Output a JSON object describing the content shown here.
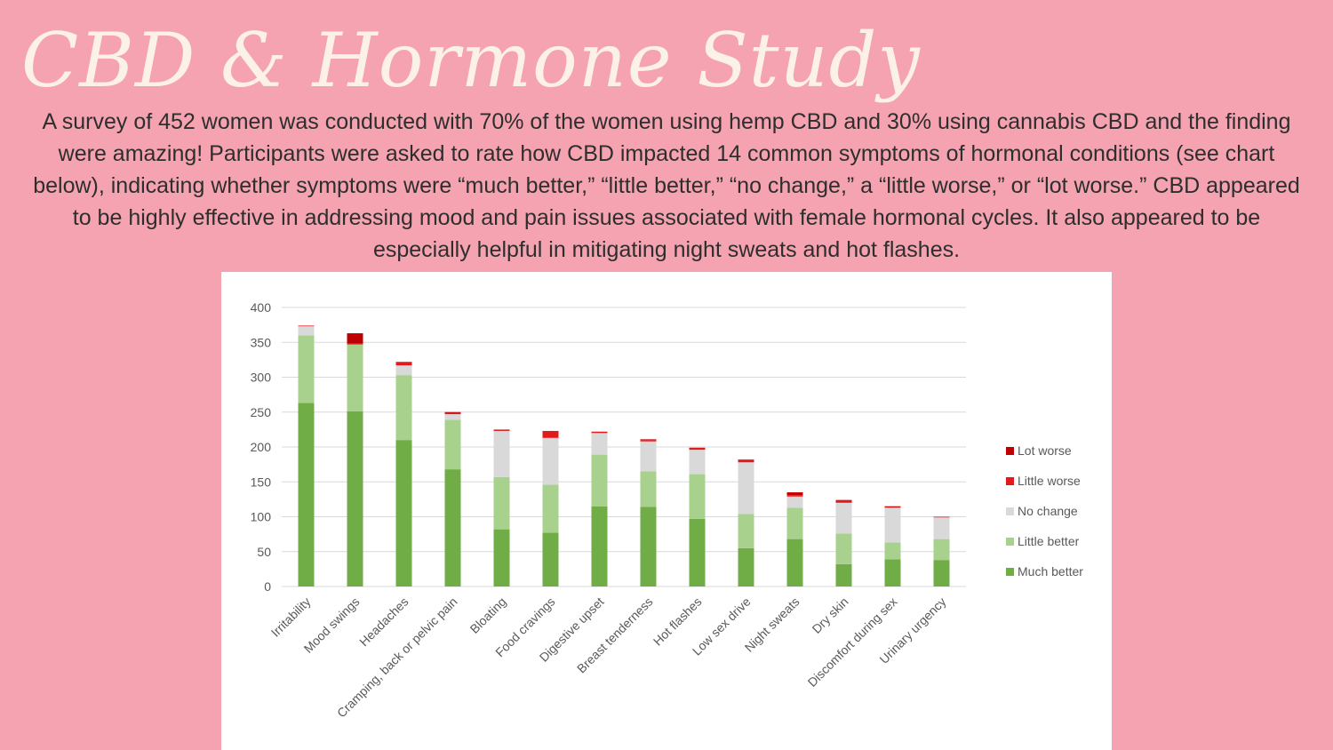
{
  "title": "CBD & Hormone Study",
  "description": "A survey of 452 women was conducted with 70% of the women using hemp CBD and 30% using cannabis CBD and the finding were amazing! Participants were asked to rate how CBD impacted 14 common symptoms of hormonal conditions (see chart below), indicating whether symptoms were “much better,” “little better,” “no change,” a “little worse,” or “lot worse.” CBD appeared to be highly effective in addressing mood and pain issues associated with female hormonal cycles. It also appeared to be especially helpful in mitigating night sweats and hot flashes.",
  "chart_data": {
    "type": "bar",
    "stacked": true,
    "categories": [
      "Irritability",
      "Mood swings",
      "Headaches",
      "Cramping, back or pelvic pain",
      "Bloating",
      "Food cravings",
      "Digestive upset",
      "Breast tenderness",
      "Hot flashes",
      "Low sex drive",
      "Night sweats",
      "Dry skin",
      "Discomfort during sex",
      "Urinary urgency"
    ],
    "series": [
      {
        "name": "Much better",
        "color": "#70ad47",
        "values": [
          263,
          251,
          210,
          168,
          82,
          77,
          115,
          114,
          97,
          55,
          68,
          32,
          39,
          38
        ]
      },
      {
        "name": "Little better",
        "color": "#a9d18e",
        "values": [
          97,
          96,
          93,
          71,
          75,
          69,
          74,
          51,
          64,
          49,
          45,
          44,
          24,
          30
        ]
      },
      {
        "name": "No change",
        "color": "#d9d9d9",
        "values": [
          13,
          0,
          14,
          8,
          66,
          67,
          31,
          43,
          35,
          74,
          16,
          44,
          50,
          31
        ]
      },
      {
        "name": "Little worse",
        "color": "#e31a1c",
        "values": [
          1,
          1,
          5,
          2,
          2,
          10,
          2,
          2,
          3,
          4,
          2,
          3,
          1,
          1
        ]
      },
      {
        "name": "Lot worse",
        "color": "#c00000",
        "values": [
          0,
          15,
          0,
          1,
          0,
          0,
          0,
          1,
          0,
          0,
          4,
          1,
          1,
          0
        ]
      }
    ],
    "legend_order": [
      "Lot worse",
      "Little worse",
      "No change",
      "Little better",
      "Much better"
    ],
    "legend_position": "right",
    "ylim": [
      0,
      400
    ],
    "yticks": [
      0,
      50,
      100,
      150,
      200,
      250,
      300,
      350,
      400
    ],
    "grid": true
  }
}
